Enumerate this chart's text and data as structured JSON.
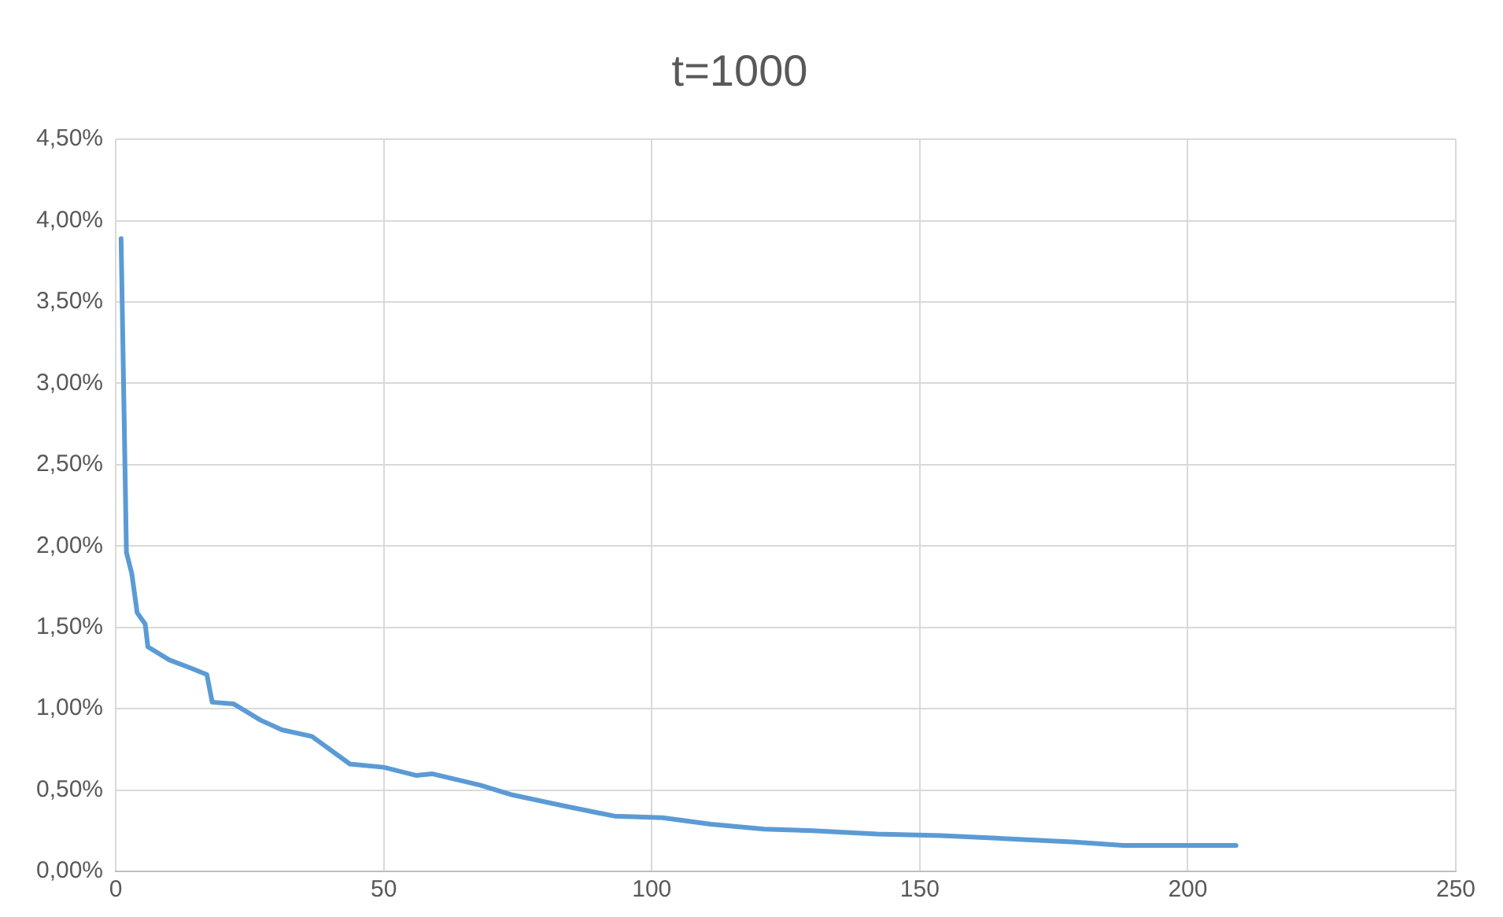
{
  "chart_data": {
    "type": "line",
    "title": "t=1000",
    "x": [
      1,
      2,
      3,
      4,
      5.5,
      6,
      10,
      14,
      17,
      18,
      22,
      27,
      31,
      36.6,
      43.7,
      50,
      56,
      59,
      68,
      74,
      84,
      93,
      102,
      111,
      121,
      130,
      142,
      154,
      167,
      179,
      188,
      209
    ],
    "series": [
      {
        "color": "#5b9bd5",
        "values": [
          3.89,
          1.96,
          1.83,
          1.59,
          1.52,
          1.38,
          1.3,
          1.25,
          1.21,
          1.04,
          1.03,
          0.93,
          0.87,
          0.83,
          0.66,
          0.64,
          0.59,
          0.6,
          0.53,
          0.47,
          0.4,
          0.34,
          0.33,
          0.29,
          0.26,
          0.25,
          0.23,
          0.22,
          0.2,
          0.18,
          0.16,
          0.16
        ]
      }
    ],
    "xlim": [
      0,
      250
    ],
    "xticks": [
      0,
      50,
      100,
      150,
      200,
      250
    ],
    "ylim": [
      0,
      4.5
    ],
    "yticks": [
      {
        "value": 0,
        "label": "0,00%"
      },
      {
        "value": 0.5,
        "label": "0,50%"
      },
      {
        "value": 1,
        "label": "1,00%"
      },
      {
        "value": 1.5,
        "label": "1,50%"
      },
      {
        "value": 2,
        "label": "2,00%"
      },
      {
        "value": 2.5,
        "label": "2,50%"
      },
      {
        "value": 3,
        "label": "3,00%"
      },
      {
        "value": 3.5,
        "label": "3,50%"
      },
      {
        "value": 4,
        "label": "4,00%"
      },
      {
        "value": 4.5,
        "label": "4,50%"
      }
    ],
    "grid": true,
    "legend": false,
    "marker": "none",
    "line_style": "solid"
  }
}
